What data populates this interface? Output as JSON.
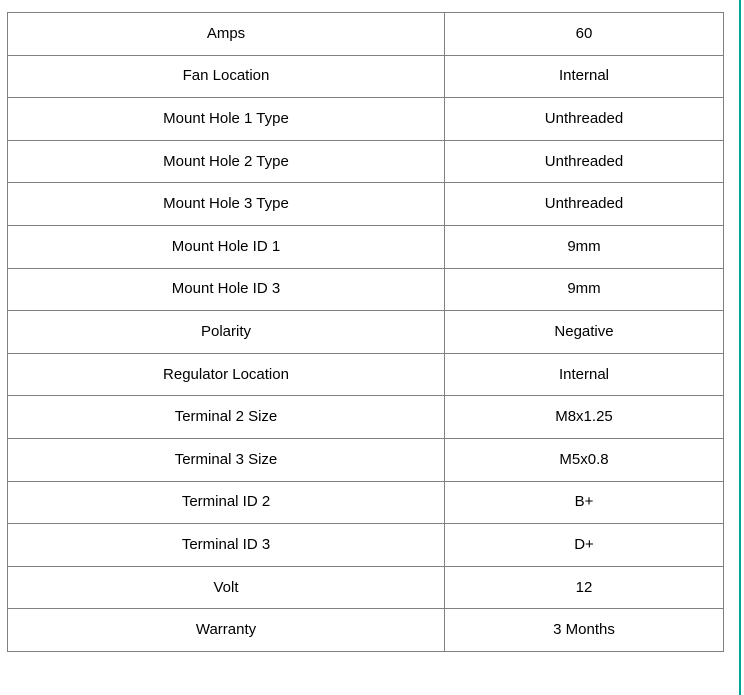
{
  "page": {
    "background_color": "#ffffff",
    "accent_line_color": "#00A693"
  },
  "table": {
    "border_color": "#808080",
    "text_color": "#000000",
    "rows": [
      {
        "label": "Amps",
        "value": "60"
      },
      {
        "label": "Fan Location",
        "value": "Internal"
      },
      {
        "label": "Mount Hole 1 Type",
        "value": "Unthreaded"
      },
      {
        "label": "Mount Hole 2 Type",
        "value": "Unthreaded"
      },
      {
        "label": "Mount Hole 3 Type",
        "value": "Unthreaded"
      },
      {
        "label": "Mount Hole ID 1",
        "value": "9mm"
      },
      {
        "label": "Mount Hole ID 3",
        "value": "9mm"
      },
      {
        "label": "Polarity",
        "value": "Negative"
      },
      {
        "label": "Regulator Location",
        "value": "Internal"
      },
      {
        "label": "Terminal 2 Size",
        "value": "M8x1.25"
      },
      {
        "label": "Terminal 3 Size",
        "value": "M5x0.8"
      },
      {
        "label": "Terminal ID 2",
        "value": "B+"
      },
      {
        "label": "Terminal ID 3",
        "value": "D+"
      },
      {
        "label": "Volt",
        "value": "12"
      },
      {
        "label": "Warranty",
        "value": "3 Months"
      }
    ]
  }
}
